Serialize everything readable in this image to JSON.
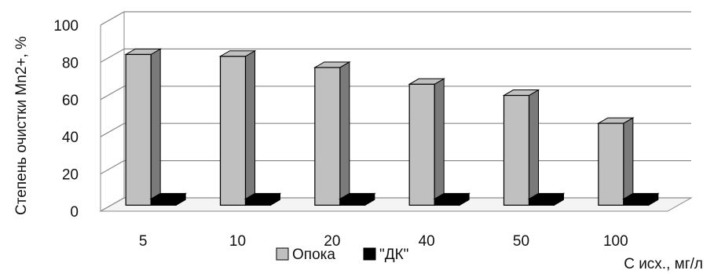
{
  "chart_data": {
    "type": "bar",
    "categories": [
      "5",
      "10",
      "20",
      "40",
      "50",
      "100"
    ],
    "series": [
      {
        "name": "Опока",
        "values": [
          81,
          80,
          74,
          65,
          59,
          44
        ],
        "color": "#c0c0c0"
      },
      {
        "name": "\"ДК\"",
        "values": [
          2,
          2,
          3,
          3,
          1,
          2
        ],
        "color": "#000000"
      }
    ],
    "ylabel": "Степень очистки Mn2+, %",
    "xlabel": "С исх., мг/л",
    "ylim": [
      0,
      100
    ],
    "yticks": [
      0,
      20,
      40,
      60,
      80,
      100
    ],
    "grid": true,
    "legend": "bottom"
  }
}
